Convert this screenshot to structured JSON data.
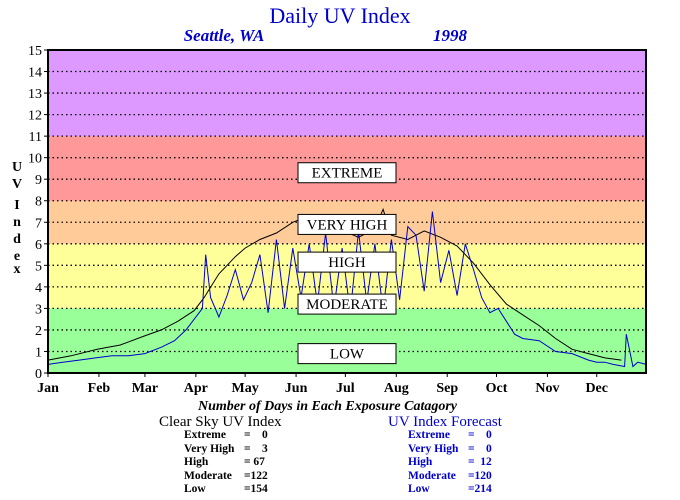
{
  "chart_data": {
    "type": "line",
    "title": "Daily UV Index",
    "subtitle_location": "Seattle, WA",
    "subtitle_year": "1998",
    "ylabel": "UV Index",
    "ylim": [
      0,
      15
    ],
    "yticks": [
      "0",
      "1",
      "2",
      "3",
      "4",
      "5",
      "6",
      "7",
      "8",
      "9",
      "10",
      "11",
      "12",
      "13",
      "14",
      "15"
    ],
    "xlabel_months": [
      "Jan",
      "Feb",
      "Mar",
      "Apr",
      "May",
      "Jun",
      "Jul",
      "Aug",
      "Sep",
      "Oct",
      "Nov",
      "Dec"
    ],
    "grid": true,
    "bands": [
      {
        "name": "LOW",
        "from": 0,
        "to": 3,
        "color": "#99ff99",
        "label_y": 1.8
      },
      {
        "name": "MODERATE",
        "from": 3,
        "to": 6,
        "color": "#ffff99",
        "label_y": 6.4
      },
      {
        "name": "HIGH",
        "from": 6,
        "to": 8,
        "color": "#ffcc99",
        "label_y": 10.3
      },
      {
        "name": "VERY HIGH",
        "from": 8,
        "to": 11,
        "color": "#ff9999",
        "label_y": 13.8
      },
      {
        "name": "EXTREME",
        "from": 11,
        "to": 15,
        "color": "#dd99ff",
        "label_y": 18.6
      }
    ],
    "series": [
      {
        "name": "Clear Sky UV Index",
        "color": "#000000",
        "x_days": [
          1,
          15,
          31,
          45,
          59,
          70,
          80,
          90,
          96,
          105,
          115,
          121,
          130,
          140,
          150,
          160,
          170,
          175,
          181,
          190,
          195,
          200,
          205,
          210,
          220,
          230,
          240,
          250,
          260,
          270,
          280,
          290,
          300,
          310,
          320,
          330,
          340,
          350
        ],
        "values": [
          0.6,
          0.8,
          1.1,
          1.3,
          1.7,
          2.0,
          2.4,
          2.9,
          3.5,
          4.6,
          5.4,
          5.8,
          6.2,
          6.5,
          7.0,
          7.3,
          6.8,
          6.8,
          6.6,
          6.3,
          6.5,
          6.7,
          7.6,
          6.4,
          6.2,
          6.6,
          6.3,
          5.9,
          5.1,
          4.1,
          3.2,
          2.7,
          2.2,
          1.6,
          1.1,
          0.9,
          0.7,
          0.6
        ]
      },
      {
        "name": "UV Index Forecast",
        "color": "#0000cc",
        "x_days": [
          1,
          10,
          20,
          30,
          40,
          50,
          60,
          70,
          78,
          85,
          90,
          95,
          97,
          100,
          105,
          110,
          115,
          120,
          125,
          130,
          135,
          140,
          145,
          150,
          155,
          160,
          165,
          170,
          175,
          180,
          185,
          190,
          195,
          200,
          205,
          210,
          215,
          220,
          225,
          230,
          235,
          240,
          245,
          250,
          255,
          260,
          265,
          270,
          275,
          280,
          285,
          290,
          300,
          310,
          320,
          330,
          335,
          340,
          345,
          352,
          353,
          357,
          360,
          365
        ],
        "values": [
          0.4,
          0.5,
          0.6,
          0.7,
          0.8,
          0.8,
          0.9,
          1.2,
          1.5,
          2.0,
          2.5,
          3.0,
          5.5,
          3.5,
          2.6,
          3.6,
          4.8,
          3.4,
          4.2,
          5.5,
          2.8,
          6.2,
          3.0,
          5.8,
          3.5,
          6.0,
          3.2,
          6.5,
          3.0,
          5.8,
          2.8,
          6.6,
          3.3,
          6.0,
          2.9,
          6.2,
          3.4,
          6.8,
          6.4,
          3.8,
          7.5,
          4.2,
          5.7,
          3.6,
          6.0,
          4.8,
          3.5,
          2.8,
          3.0,
          2.4,
          1.8,
          1.6,
          1.5,
          1.0,
          0.9,
          0.6,
          0.5,
          0.5,
          0.4,
          0.3,
          1.8,
          0.3,
          0.5,
          0.4
        ]
      }
    ],
    "stats_title": "Number of Days in Each Exposure Catagory",
    "clear_sky_heading": "Clear Sky UV Index",
    "forecast_heading": "UV Index Forecast",
    "clear_sky_stats": [
      {
        "label": "Extreme",
        "value": "=    0"
      },
      {
        "label": "Very High",
        "value": "=    3"
      },
      {
        "label": "High",
        "value": "= 67"
      },
      {
        "label": "Moderate",
        "value": "=122"
      },
      {
        "label": "Low",
        "value": "=154"
      }
    ],
    "forecast_stats": [
      {
        "label": "Extreme",
        "value": "=    0"
      },
      {
        "label": "Very High",
        "value": "=    0"
      },
      {
        "label": "High",
        "value": "=  12"
      },
      {
        "label": "Moderate",
        "value": "=120"
      },
      {
        "label": "Low",
        "value": "=214"
      }
    ]
  }
}
